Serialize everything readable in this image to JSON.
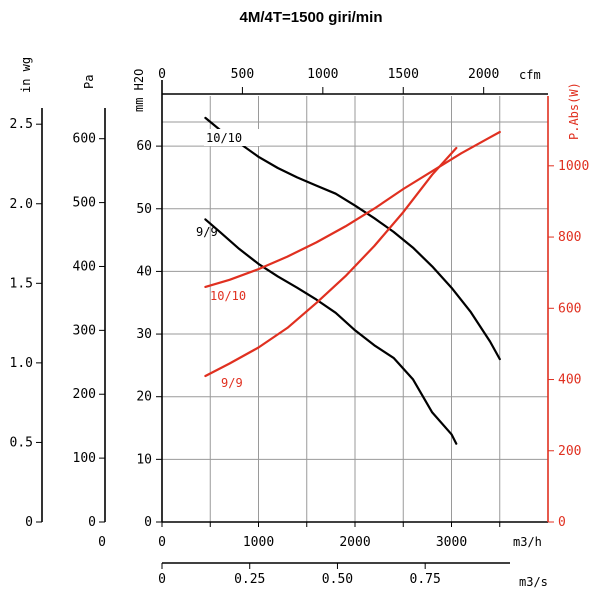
{
  "chart_data": {
    "type": "line",
    "title": "4M/4T=1500 giri/min",
    "grid": true,
    "x_axes": {
      "m3h": {
        "label": "m3/h",
        "range": [
          0,
          4000
        ],
        "ticks": [
          "0",
          "1000",
          "2000",
          "3000"
        ]
      },
      "cfm": {
        "label": "cfm",
        "range": [
          0,
          2400
        ],
        "ticks": [
          "0",
          "500",
          "1000",
          "1500",
          "2000"
        ]
      },
      "m3s": {
        "label": "m3/s",
        "range": [
          0,
          1.1
        ],
        "ticks": [
          "0",
          "0.25",
          "0.50",
          "0.75"
        ]
      }
    },
    "y_axes": {
      "inwg": {
        "label": "in wg",
        "ticks": [
          "0",
          "0.5",
          "1.0",
          "1.5",
          "2.0",
          "2.5"
        ]
      },
      "pa": {
        "label": "Pa",
        "ticks": [
          "0",
          "100",
          "200",
          "300",
          "400",
          "500",
          "600"
        ]
      },
      "mmh2o": {
        "label": "mm H2O",
        "range": [
          0,
          68
        ],
        "ticks": [
          "10",
          "20",
          "30",
          "40",
          "50",
          "60"
        ]
      },
      "power": {
        "label": "P.Abs(W)",
        "range": [
          0,
          1196
        ],
        "ticks": [
          "0",
          "200",
          "400",
          "600",
          "800",
          "1000"
        ]
      }
    },
    "corner_zero": "0",
    "series": [
      {
        "name": "10/10",
        "kind": "pressure",
        "color": "#000000",
        "x": [
          450,
          600,
          800,
          1000,
          1200,
          1400,
          1600,
          1800,
          2000,
          2200,
          2400,
          2600,
          2800,
          3000,
          3200,
          3400,
          3500
        ],
        "y": [
          64.5,
          62.6,
          60.5,
          58.3,
          56.5,
          55,
          53.7,
          52.4,
          50.5,
          48.5,
          46.3,
          43.8,
          40.8,
          37.4,
          33.5,
          28.8,
          26
        ]
      },
      {
        "name": "9/9",
        "kind": "pressure",
        "color": "#000000",
        "x": [
          450,
          600,
          800,
          1000,
          1200,
          1400,
          1600,
          1800,
          2000,
          2200,
          2400,
          2600,
          2800,
          3000,
          3050
        ],
        "y": [
          48.3,
          46.3,
          43.6,
          41.2,
          39.2,
          37.4,
          35.5,
          33.4,
          30.6,
          28.2,
          26.2,
          22.8,
          17.5,
          14,
          12.5
        ]
      },
      {
        "name": "10/10",
        "kind": "power",
        "color": "#e03020",
        "x": [
          450,
          700,
          1000,
          1300,
          1600,
          1900,
          2200,
          2500,
          2800,
          3100,
          3400,
          3500
        ],
        "y": [
          660,
          680,
          710,
          745,
          785,
          830,
          880,
          935,
          985,
          1035,
          1080,
          1095
        ]
      },
      {
        "name": "9/9",
        "kind": "power",
        "color": "#e03020",
        "x": [
          450,
          700,
          1000,
          1300,
          1600,
          1900,
          2200,
          2500,
          2800,
          3050
        ],
        "y": [
          410,
          445,
          490,
          545,
          615,
          690,
          775,
          870,
          975,
          1050
        ]
      }
    ]
  }
}
